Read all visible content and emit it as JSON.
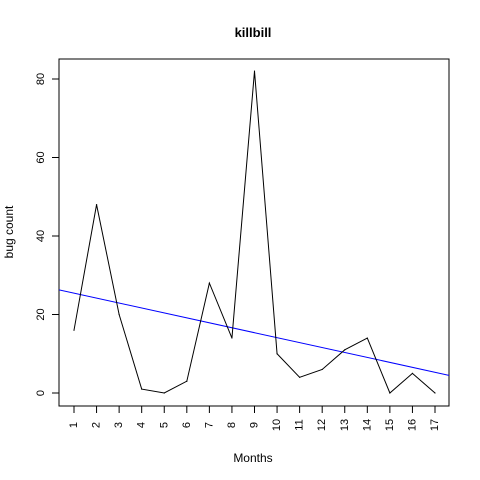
{
  "chart_data": {
    "type": "line",
    "title": "killbill",
    "xlabel": "Months",
    "ylabel": "bug count",
    "x": [
      1,
      2,
      3,
      4,
      5,
      6,
      7,
      8,
      9,
      10,
      11,
      12,
      13,
      14,
      15,
      16,
      17
    ],
    "xticks": [
      "1",
      "2",
      "3",
      "4",
      "5",
      "6",
      "7",
      "8",
      "9",
      "10",
      "11",
      "12",
      "13",
      "14",
      "15",
      "16",
      "17"
    ],
    "yticks": [
      "0",
      "20",
      "40",
      "60",
      "80"
    ],
    "ylim": [
      0,
      82
    ],
    "xlim": [
      1,
      17
    ],
    "grid": false,
    "legend": "none",
    "series": [
      {
        "values": [
          16,
          48,
          20,
          1,
          0,
          3,
          28,
          14,
          82,
          10,
          4,
          6,
          11,
          14,
          0,
          5,
          0
        ],
        "color": "#000000"
      }
    ],
    "trend_line": {
      "intercept": 26.7,
      "slope": -1.26,
      "color": "#0000ff"
    }
  }
}
